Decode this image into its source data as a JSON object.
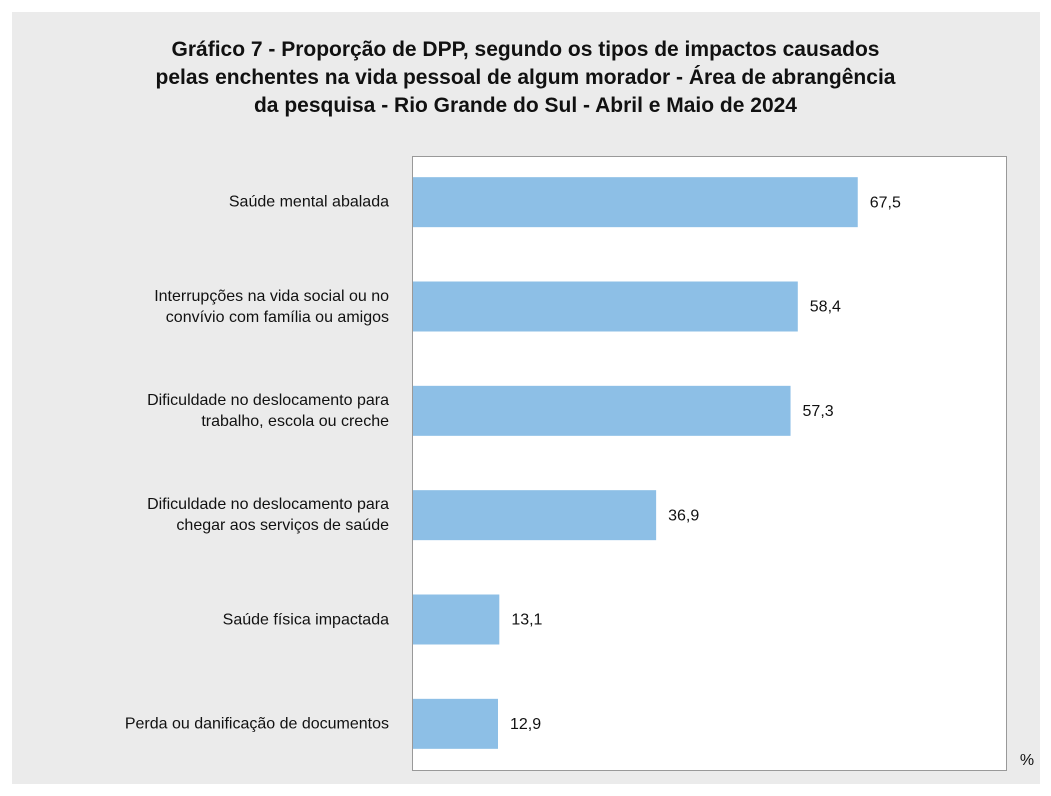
{
  "chart_data": {
    "type": "bar",
    "orientation": "horizontal",
    "title": "Gráfico 7 - Proporção de DPP, segundo os tipos de impactos causados\npelas enchentes na vida pessoal de algum morador - Área de abrangência\nda pesquisa - Rio Grande do Sul - Abril e Maio de 2024",
    "categories": [
      "Saúde mental abalada",
      "Interrupções na vida social ou no\nconvívio com família ou amigos",
      "Dificuldade no deslocamento para\ntrabalho, escola ou creche",
      "Dificuldade no deslocamento para\nchegar aos serviços de saúde",
      "Saúde física impactada",
      "Perda ou danificação de documentos"
    ],
    "values": [
      67.5,
      58.4,
      57.3,
      36.9,
      13.1,
      12.9
    ],
    "value_labels": [
      "67,5",
      "58,4",
      "57,3",
      "36,9",
      "13,1",
      "12,9"
    ],
    "color": "#8dbfe6",
    "xlim": [
      0,
      90
    ],
    "x_axis_label": "%"
  }
}
